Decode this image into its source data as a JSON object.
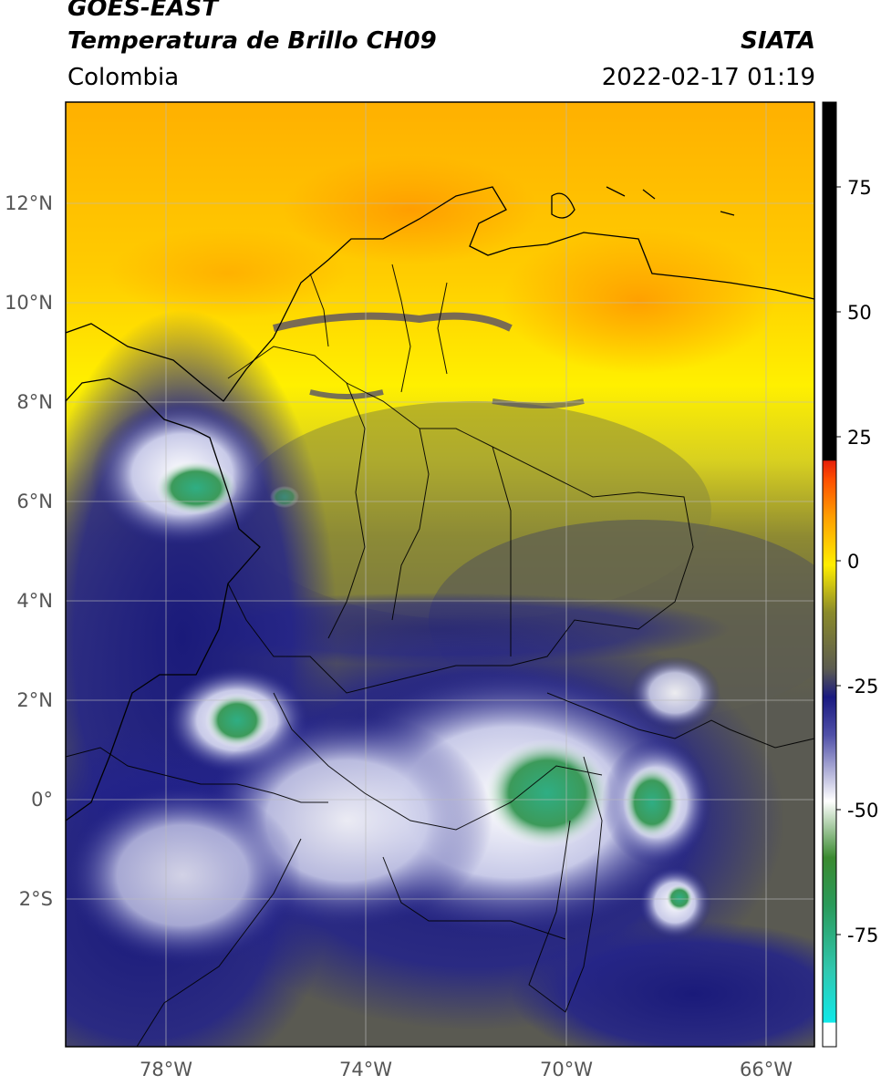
{
  "header": {
    "satellite": "GOES-EAST",
    "product": "Temperatura de Brillo CH09",
    "institution": "SIATA",
    "region": "Colombia",
    "timestamp": "2022-02-17 01:19"
  },
  "map": {
    "lat_ticks": [
      "12°N",
      "10°N",
      "8°N",
      "6°N",
      "4°N",
      "2°N",
      "0°",
      "2°S"
    ],
    "lon_ticks": [
      "78°W",
      "74°W",
      "70°W",
      "66°W"
    ],
    "extent": {
      "lon_min": -80,
      "lon_max": -65,
      "lat_min": -5,
      "lat_max": 14
    }
  },
  "colorbar": {
    "ticks": [
      "75",
      "50",
      "25",
      "0",
      "-25",
      "-50",
      "-75"
    ],
    "range": [
      -95,
      90
    ],
    "colors": {
      "warm_top": "#000000",
      "red": "#e6200a",
      "orange": "#ffa500",
      "yellow": "#ffee00",
      "olive": "#8a8a2a",
      "gray": "#5c5c50",
      "navy": "#1a1a80",
      "white": "#ffffff",
      "green": "#2e8b3e",
      "teal": "#30c8a8",
      "cyan": "#10e8e8"
    }
  }
}
